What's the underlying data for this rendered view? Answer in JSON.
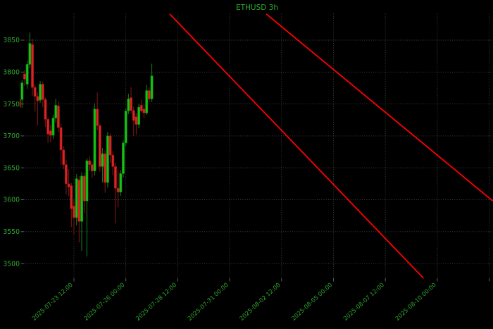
{
  "chart_data": {
    "type": "candlestick",
    "title": "ETHUSD 3h",
    "symbol": "ETHUSD",
    "interval": "3h",
    "start_time": "2025-07-20 21:00",
    "interval_hours": 3,
    "y_ticks": [
      3850,
      3800,
      3750,
      3700,
      3650,
      3600,
      3550,
      3500
    ],
    "x_ticks": [
      {
        "label": "2025-07-23 12:00",
        "index": 21
      },
      {
        "label": "2025-07-26 00:00",
        "index": 41
      },
      {
        "label": "2025-07-28 12:00",
        "index": 61
      },
      {
        "label": "2025-07-31 00:00",
        "index": 81
      },
      {
        "label": "2025-08-02 12:00",
        "index": 101
      },
      {
        "label": "2025-08-05 00:00",
        "index": 121
      },
      {
        "label": "2025-08-07 12:00",
        "index": 141
      },
      {
        "label": "2025-08-10 00:00",
        "index": 161
      }
    ],
    "extra_gridline_index": 181,
    "candles": [
      [
        3757,
        3762,
        3738,
        3745
      ],
      [
        3757,
        3787,
        3744,
        3783
      ],
      [
        3797,
        3803,
        3778,
        3789
      ],
      [
        3781,
        3818,
        3774,
        3812
      ],
      [
        3812,
        3862,
        3806,
        3845
      ],
      [
        3843,
        3852,
        3763,
        3776
      ],
      [
        3776,
        3781,
        3738,
        3762
      ],
      [
        3762,
        3768,
        3716,
        3755
      ],
      [
        3756,
        3786,
        3752,
        3781
      ],
      [
        3781,
        3785,
        3745,
        3757
      ],
      [
        3757,
        3760,
        3714,
        3726
      ],
      [
        3726,
        3729,
        3689,
        3703
      ],
      [
        3708,
        3717,
        3690,
        3701
      ],
      [
        3701,
        3733,
        3695,
        3728
      ],
      [
        3728,
        3758,
        3721,
        3748
      ],
      [
        3747,
        3754,
        3706,
        3713
      ],
      [
        3713,
        3719,
        3655,
        3678
      ],
      [
        3678,
        3684,
        3648,
        3655
      ],
      [
        3655,
        3662,
        3608,
        3625
      ],
      [
        3625,
        3648,
        3606,
        3620
      ],
      [
        3622,
        3626,
        3557,
        3586
      ],
      [
        3590,
        3600,
        3546,
        3572
      ],
      [
        3572,
        3640,
        3560,
        3633
      ],
      [
        3631,
        3637,
        3533,
        3566
      ],
      [
        3566,
        3643,
        3520,
        3637
      ],
      [
        3637,
        3642,
        3579,
        3598
      ],
      [
        3598,
        3665,
        3511,
        3661
      ],
      [
        3661,
        3668,
        3645,
        3655
      ],
      [
        3655,
        3660,
        3634,
        3645
      ],
      [
        3645,
        3751,
        3638,
        3742
      ],
      [
        3742,
        3768,
        3709,
        3716
      ],
      [
        3716,
        3720,
        3644,
        3652
      ],
      [
        3652,
        3681,
        3627,
        3672
      ],
      [
        3672,
        3678,
        3611,
        3627
      ],
      [
        3627,
        3706,
        3619,
        3700
      ],
      [
        3700,
        3704,
        3658,
        3670
      ],
      [
        3670,
        3676,
        3638,
        3652
      ],
      [
        3652,
        3658,
        3563,
        3618
      ],
      [
        3618,
        3645,
        3588,
        3612
      ],
      [
        3612,
        3646,
        3606,
        3641
      ],
      [
        3641,
        3693,
        3635,
        3689
      ],
      [
        3689,
        3743,
        3684,
        3739
      ],
      [
        3739,
        3766,
        3734,
        3758
      ],
      [
        3760,
        3776,
        3735,
        3740
      ],
      [
        3740,
        3746,
        3700,
        3724
      ],
      [
        3730,
        3736,
        3702,
        3718
      ],
      [
        3718,
        3750,
        3712,
        3745
      ],
      [
        3748,
        3757,
        3736,
        3739
      ],
      [
        3742,
        3750,
        3727,
        3736
      ],
      [
        3736,
        3780,
        3733,
        3771
      ],
      [
        3771,
        3776,
        3752,
        3758
      ],
      [
        3758,
        3813,
        3753,
        3794
      ]
    ],
    "trend_lines": [
      {
        "x1_index": 57.9,
        "price1": 3891,
        "x2_index": 155.7,
        "price2": 3477
      },
      {
        "x1_index": 95.1,
        "price1": 3891,
        "x2_index": 182.4,
        "price2": 3598
      }
    ],
    "colors": {
      "background": "#000000",
      "up_body": "#14c314",
      "up_edge": "#0a870a",
      "up_wick": "#157815",
      "down_body": "#dc2323",
      "down_edge": "#961414",
      "down_wick": "#7a1515",
      "grid": "#3e4a3e",
      "tick_mark": "#566056",
      "label_text": "#2fa82f",
      "title_text": "#2ca82c",
      "trend_line": "#ff0000"
    }
  }
}
